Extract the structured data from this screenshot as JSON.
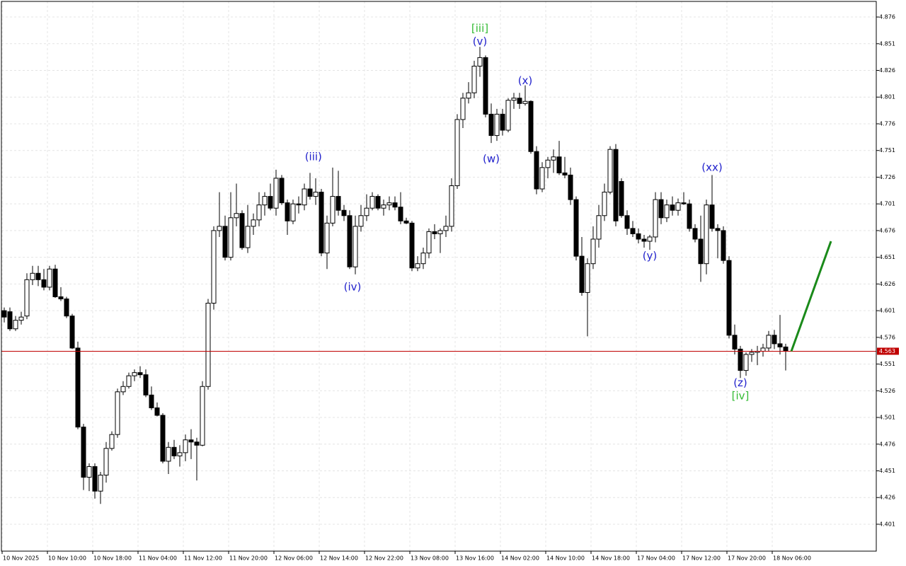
{
  "chart_data": {
    "type": "candlestick",
    "categories": [
      "10 Nov 2025",
      null,
      null,
      null,
      null,
      null,
      null,
      null,
      "10 Nov 10:00",
      null,
      null,
      null,
      null,
      null,
      null,
      null,
      "10 Nov 18:00",
      null,
      null,
      null,
      null,
      null,
      null,
      null,
      "11 Nov 04:00",
      null,
      null,
      null,
      null,
      null,
      null,
      null,
      "11 Nov 12:00",
      null,
      null,
      null,
      null,
      null,
      null,
      null,
      "11 Nov 20:00",
      null,
      null,
      null,
      null,
      null,
      null,
      null,
      "12 Nov 06:00",
      null,
      null,
      null,
      null,
      null,
      null,
      null,
      "12 Nov 14:00",
      null,
      null,
      null,
      null,
      null,
      null,
      null,
      "12 Nov 22:00",
      null,
      null,
      null,
      null,
      null,
      null,
      null,
      "13 Nov 08:00",
      null,
      null,
      null,
      null,
      null,
      null,
      null,
      "13 Nov 16:00",
      null,
      null,
      null,
      null,
      null,
      null,
      null,
      "14 Nov 02:00",
      null,
      null,
      null,
      null,
      null,
      null,
      null,
      "14 Nov 10:00",
      null,
      null,
      null,
      null,
      null,
      null,
      null,
      "14 Nov 18:00",
      null,
      null,
      null,
      null,
      null,
      null,
      null,
      "17 Nov 04:00",
      null,
      null,
      null,
      null,
      null,
      null,
      null,
      "17 Nov 12:00",
      null,
      null,
      null,
      null,
      null,
      null,
      null,
      "17 Nov 20:00",
      null,
      null,
      null,
      null,
      null,
      null,
      null,
      "18 Nov 06:00",
      null,
      null
    ],
    "open": [
      4.601,
      4.6,
      4.584,
      4.592,
      4.596,
      4.63,
      4.636,
      4.63,
      4.623,
      4.64,
      4.614,
      4.612,
      4.596,
      4.566,
      4.492,
      4.445,
      4.455,
      4.432,
      4.447,
      4.472,
      4.485,
      4.525,
      4.53,
      4.54,
      4.543,
      4.541,
      4.522,
      4.51,
      4.503,
      4.46,
      4.473,
      4.465,
      4.468,
      4.48,
      4.478,
      4.475,
      4.53,
      4.608,
      4.676,
      4.68,
      4.651,
      4.688,
      4.692,
      4.66,
      4.68,
      4.686,
      4.7,
      4.708,
      4.697,
      4.725,
      4.702,
      4.685,
      4.701,
      4.7,
      4.715,
      4.708,
      4.712,
      4.655,
      4.683,
      4.708,
      4.695,
      4.69,
      4.642,
      4.68,
      4.69,
      4.697,
      4.708,
      4.697,
      4.7,
      4.702,
      4.698,
      4.685,
      4.683,
      4.641,
      4.645,
      4.655,
      4.675,
      4.673,
      4.676,
      4.68,
      4.718,
      4.78,
      4.8,
      4.805,
      4.83,
      4.838,
      4.785,
      4.765,
      4.785,
      4.77,
      4.798,
      4.8,
      4.795,
      4.797,
      4.75,
      4.715,
      4.735,
      4.742,
      4.745,
      4.73,
      4.728,
      4.705,
      4.652,
      4.618,
      4.645,
      4.668,
      4.69,
      4.712,
      4.752,
      4.722,
      4.69,
      4.678,
      4.673,
      4.668,
      4.666,
      4.67,
      4.705,
      4.688,
      4.7,
      4.695,
      4.702,
      4.701,
      4.678,
      4.668,
      4.645,
      4.7,
      4.678,
      4.676,
      4.648,
      4.578,
      4.565,
      4.545,
      4.56,
      4.562,
      4.563,
      4.566,
      4.578,
      4.57,
      4.567
    ],
    "high": [
      4.604,
      4.604,
      4.596,
      4.6,
      4.636,
      4.643,
      4.643,
      4.64,
      4.643,
      4.644,
      4.623,
      4.614,
      4.598,
      4.572,
      4.495,
      4.458,
      4.458,
      4.45,
      4.478,
      4.488,
      4.528,
      4.535,
      4.543,
      4.546,
      4.549,
      4.546,
      4.53,
      4.515,
      4.505,
      4.478,
      4.48,
      4.475,
      4.485,
      4.49,
      4.482,
      4.535,
      4.612,
      4.68,
      4.712,
      4.69,
      4.712,
      4.72,
      4.695,
      4.7,
      4.692,
      4.712,
      4.712,
      4.72,
      4.733,
      4.728,
      4.705,
      4.705,
      4.708,
      4.72,
      4.73,
      4.725,
      4.715,
      4.69,
      4.735,
      4.732,
      4.7,
      4.695,
      4.69,
      4.7,
      4.71,
      4.712,
      4.71,
      4.705,
      4.708,
      4.708,
      4.712,
      4.688,
      4.685,
      4.652,
      4.66,
      4.678,
      4.682,
      4.678,
      4.69,
      4.725,
      4.785,
      4.805,
      4.815,
      4.835,
      4.848,
      4.84,
      4.795,
      4.79,
      4.79,
      4.8,
      4.805,
      4.805,
      4.812,
      4.798,
      4.755,
      4.74,
      4.745,
      4.752,
      4.76,
      4.745,
      4.735,
      4.708,
      4.67,
      4.65,
      4.68,
      4.7,
      4.72,
      4.755,
      4.757,
      4.725,
      4.695,
      4.685,
      4.678,
      4.672,
      4.672,
      4.712,
      4.712,
      4.705,
      4.708,
      4.706,
      4.712,
      4.705,
      4.682,
      4.69,
      4.705,
      4.728,
      4.682,
      4.68,
      4.652,
      4.588,
      4.568,
      4.562,
      4.565,
      4.568,
      4.57,
      4.582,
      4.583,
      4.597,
      4.57
    ],
    "low": [
      4.59,
      4.582,
      4.582,
      4.588,
      4.593,
      4.625,
      4.624,
      4.62,
      4.62,
      4.613,
      4.61,
      4.594,
      4.565,
      4.49,
      4.433,
      4.432,
      4.425,
      4.42,
      4.44,
      4.47,
      4.482,
      4.522,
      4.528,
      4.535,
      4.538,
      4.52,
      4.508,
      4.502,
      4.458,
      4.448,
      4.462,
      4.455,
      4.46,
      4.462,
      4.442,
      4.474,
      4.527,
      4.602,
      4.67,
      4.648,
      4.648,
      4.68,
      4.658,
      4.655,
      4.672,
      4.68,
      4.69,
      4.695,
      4.69,
      4.7,
      4.672,
      4.682,
      4.692,
      4.695,
      4.705,
      4.7,
      4.652,
      4.64,
      4.68,
      4.69,
      4.685,
      4.64,
      4.635,
      4.675,
      4.685,
      4.695,
      4.695,
      4.69,
      4.695,
      4.695,
      4.682,
      4.682,
      4.638,
      4.638,
      4.64,
      4.65,
      4.668,
      4.655,
      4.67,
      4.675,
      4.715,
      4.772,
      4.795,
      4.8,
      4.82,
      4.782,
      4.758,
      4.76,
      4.765,
      4.768,
      4.79,
      4.79,
      4.793,
      4.748,
      4.71,
      4.712,
      4.725,
      4.73,
      4.728,
      4.725,
      4.7,
      4.648,
      4.615,
      4.577,
      4.64,
      4.66,
      4.685,
      4.71,
      4.68,
      4.688,
      4.672,
      4.67,
      4.664,
      4.66,
      4.658,
      4.665,
      4.682,
      4.684,
      4.69,
      4.69,
      4.7,
      4.675,
      4.665,
      4.628,
      4.635,
      4.675,
      4.65,
      4.645,
      4.575,
      4.56,
      4.538,
      4.54,
      4.553,
      4.55,
      4.558,
      4.563,
      4.565,
      4.56,
      4.545
    ],
    "close": [
      4.595,
      4.584,
      4.592,
      4.595,
      4.63,
      4.636,
      4.63,
      4.623,
      4.64,
      4.614,
      4.612,
      4.596,
      4.566,
      4.492,
      4.445,
      4.455,
      4.432,
      4.447,
      4.472,
      4.485,
      4.525,
      4.53,
      4.54,
      4.543,
      4.541,
      4.522,
      4.51,
      4.503,
      4.46,
      4.473,
      4.465,
      4.468,
      4.48,
      4.478,
      4.475,
      4.53,
      4.608,
      4.676,
      4.68,
      4.651,
      4.688,
      4.692,
      4.66,
      4.68,
      4.686,
      4.7,
      4.708,
      4.697,
      4.725,
      4.702,
      4.685,
      4.701,
      4.7,
      4.715,
      4.708,
      4.712,
      4.655,
      4.683,
      4.708,
      4.695,
      4.69,
      4.642,
      4.68,
      4.69,
      4.697,
      4.708,
      4.697,
      4.7,
      4.702,
      4.698,
      4.685,
      4.683,
      4.641,
      4.645,
      4.655,
      4.675,
      4.673,
      4.676,
      4.68,
      4.718,
      4.78,
      4.8,
      4.805,
      4.83,
      4.838,
      4.785,
      4.765,
      4.785,
      4.77,
      4.798,
      4.8,
      4.795,
      4.797,
      4.75,
      4.715,
      4.735,
      4.742,
      4.745,
      4.73,
      4.728,
      4.705,
      4.652,
      4.618,
      4.645,
      4.668,
      4.69,
      4.712,
      4.752,
      4.685,
      4.69,
      4.678,
      4.673,
      4.668,
      4.666,
      4.67,
      4.705,
      4.688,
      4.7,
      4.695,
      4.702,
      4.701,
      4.678,
      4.668,
      4.645,
      4.7,
      4.678,
      4.676,
      4.648,
      4.578,
      4.565,
      4.545,
      4.56,
      4.562,
      4.563,
      4.566,
      4.578,
      4.57,
      4.567,
      4.563
    ],
    "up_color": "#ffffff",
    "down_color": "#000000",
    "ylim": [
      4.3758,
      4.8906
    ],
    "yticks": [
      4.876,
      4.851,
      4.826,
      4.801,
      4.776,
      4.751,
      4.726,
      4.701,
      4.676,
      4.651,
      4.626,
      4.601,
      4.576,
      4.551,
      4.526,
      4.501,
      4.476,
      4.451,
      4.426,
      4.401
    ],
    "grid": true,
    "current_price": {
      "value": 4.563,
      "color": "#c00000"
    },
    "annotations": [
      {
        "text": "[iii]",
        "x": 84,
        "y": 4.865,
        "color": "#33bb33"
      },
      {
        "text": "(v)",
        "x": 84,
        "y": 4.853,
        "color": "#2222cc"
      },
      {
        "text": "(x)",
        "x": 92,
        "y": 4.816,
        "color": "#2222cc"
      },
      {
        "text": "(w)",
        "x": 86,
        "y": 4.743,
        "color": "#2222cc"
      },
      {
        "text": "(iii)",
        "x": 54.6,
        "y": 4.745,
        "color": "#2222cc"
      },
      {
        "text": "(iv)",
        "x": 61.5,
        "y": 4.623,
        "color": "#2222cc"
      },
      {
        "text": "(xx)",
        "x": 125,
        "y": 4.735,
        "color": "#2222cc"
      },
      {
        "text": "(y)",
        "x": 114,
        "y": 4.652,
        "color": "#2222cc"
      },
      {
        "text": "(z)",
        "x": 130,
        "y": 4.533,
        "color": "#2222cc"
      },
      {
        "text": "[iv]",
        "x": 130,
        "y": 4.521,
        "color": "#33bb33"
      }
    ],
    "forecast": {
      "x": [
        139,
        146
      ],
      "y": [
        4.563,
        4.666
      ],
      "color": "#1a8a1a"
    }
  }
}
